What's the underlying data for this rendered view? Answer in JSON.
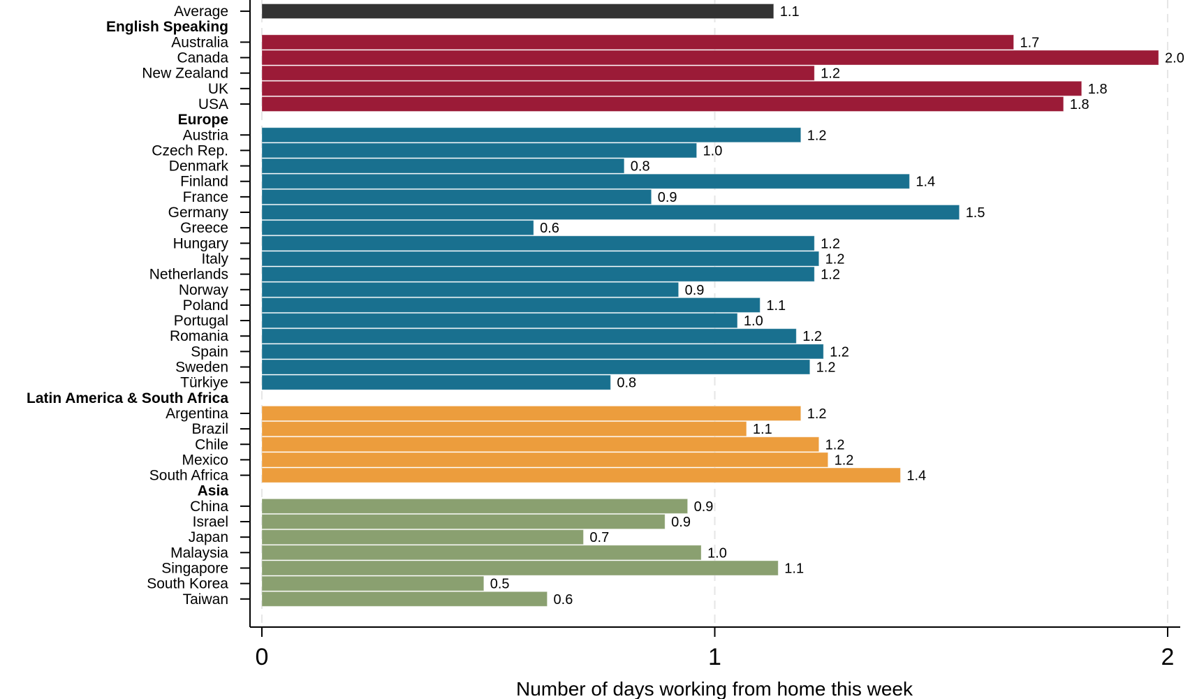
{
  "chart_data": {
    "type": "bar",
    "orientation": "horizontal",
    "xlabel": "Number of days working from home this week",
    "xlim": [
      0,
      2
    ],
    "xticks": [
      "0",
      "1",
      "2"
    ],
    "grid": "vertical dashed at major ticks",
    "groups": [
      {
        "name": "",
        "color": "#333333",
        "items": [
          {
            "category": "Average",
            "value": 1.13,
            "label": "1.1"
          }
        ]
      },
      {
        "name": "English Speaking",
        "color": "#9b1b37",
        "items": [
          {
            "category": "Australia",
            "value": 1.66,
            "label": "1.7"
          },
          {
            "category": "Canada",
            "value": 1.98,
            "label": "2.0"
          },
          {
            "category": "New Zealand",
            "value": 1.22,
            "label": "1.2"
          },
          {
            "category": "UK",
            "value": 1.81,
            "label": "1.8"
          },
          {
            "category": "USA",
            "value": 1.77,
            "label": "1.8"
          }
        ]
      },
      {
        "name": "Europe",
        "color": "#19708f",
        "items": [
          {
            "category": "Austria",
            "value": 1.19,
            "label": "1.2"
          },
          {
            "category": "Czech Rep.",
            "value": 0.96,
            "label": "1.0"
          },
          {
            "category": "Denmark",
            "value": 0.8,
            "label": "0.8"
          },
          {
            "category": "Finland",
            "value": 1.43,
            "label": "1.4"
          },
          {
            "category": "France",
            "value": 0.86,
            "label": "0.9"
          },
          {
            "category": "Germany",
            "value": 1.54,
            "label": "1.5"
          },
          {
            "category": "Greece",
            "value": 0.6,
            "label": "0.6"
          },
          {
            "category": "Hungary",
            "value": 1.22,
            "label": "1.2"
          },
          {
            "category": "Italy",
            "value": 1.23,
            "label": "1.2"
          },
          {
            "category": "Netherlands",
            "value": 1.22,
            "label": "1.2"
          },
          {
            "category": "Norway",
            "value": 0.92,
            "label": "0.9"
          },
          {
            "category": "Poland",
            "value": 1.1,
            "label": "1.1"
          },
          {
            "category": "Portugal",
            "value": 1.05,
            "label": "1.0"
          },
          {
            "category": "Romania",
            "value": 1.18,
            "label": "1.2"
          },
          {
            "category": "Spain",
            "value": 1.24,
            "label": "1.2"
          },
          {
            "category": "Sweden",
            "value": 1.21,
            "label": "1.2"
          },
          {
            "category": "Türkiye",
            "value": 0.77,
            "label": "0.8"
          }
        ]
      },
      {
        "name": "Latin America & South Africa",
        "color": "#ec9d3d",
        "items": [
          {
            "category": "Argentina",
            "value": 1.19,
            "label": "1.2"
          },
          {
            "category": "Brazil",
            "value": 1.07,
            "label": "1.1"
          },
          {
            "category": "Chile",
            "value": 1.23,
            "label": "1.2"
          },
          {
            "category": "Mexico",
            "value": 1.25,
            "label": "1.2"
          },
          {
            "category": "South Africa",
            "value": 1.41,
            "label": "1.4"
          }
        ]
      },
      {
        "name": "Asia",
        "color": "#8aa070",
        "items": [
          {
            "category": "China",
            "value": 0.94,
            "label": "0.9"
          },
          {
            "category": "Israel",
            "value": 0.89,
            "label": "0.9"
          },
          {
            "category": "Japan",
            "value": 0.71,
            "label": "0.7"
          },
          {
            "category": "Malaysia",
            "value": 0.97,
            "label": "1.0"
          },
          {
            "category": "Singapore",
            "value": 1.14,
            "label": "1.1"
          },
          {
            "category": "South Korea",
            "value": 0.49,
            "label": "0.5"
          },
          {
            "category": "Taiwan",
            "value": 0.63,
            "label": "0.6"
          }
        ]
      }
    ]
  }
}
